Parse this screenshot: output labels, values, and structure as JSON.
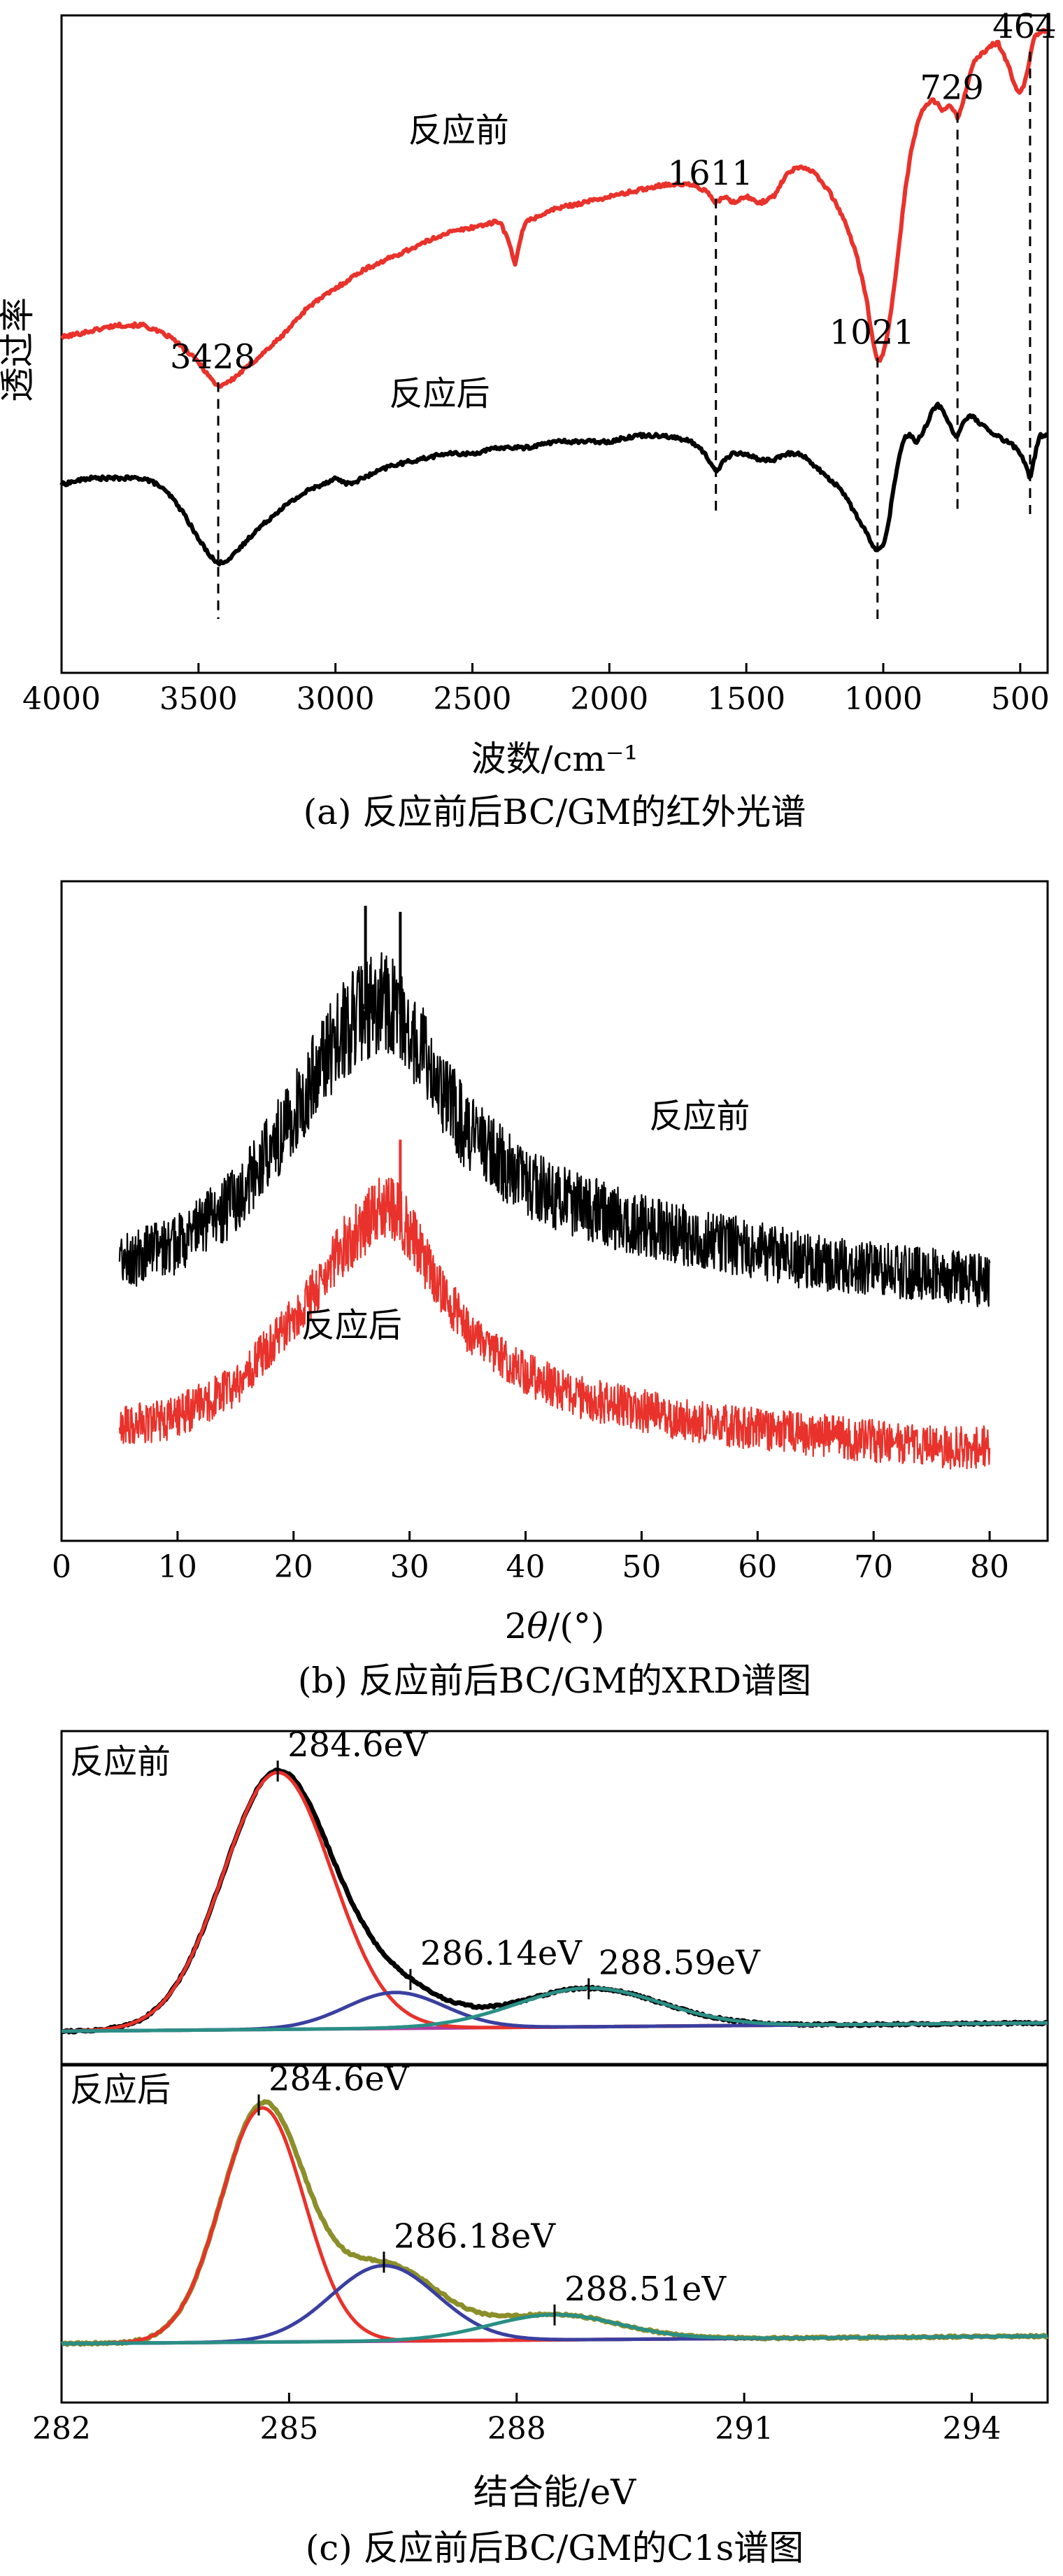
{
  "chart_data": [
    {
      "type": "line",
      "panel": "a",
      "caption": "(a) 反应前后BC/GM的红外光谱",
      "xlabel": "波数/cm⁻¹",
      "ylabel": "透过率",
      "xlim": [
        4000,
        400
      ],
      "xticks": [
        4000,
        3500,
        3000,
        2500,
        2000,
        1500,
        1000,
        500
      ],
      "grid": false,
      "peaks": [
        {
          "x": 3428,
          "label": "3428"
        },
        {
          "x": 1611,
          "label": "1611"
        },
        {
          "x": 1021,
          "label": "1021"
        },
        {
          "x": 729,
          "label": "729"
        },
        {
          "x": 464,
          "label": "464"
        }
      ],
      "series": [
        {
          "name": "反应前",
          "color": "#e8322b",
          "x": [
            4000,
            3900,
            3800,
            3700,
            3650,
            3600,
            3550,
            3500,
            3450,
            3428,
            3380,
            3300,
            3200,
            3100,
            3000,
            2900,
            2800,
            2700,
            2600,
            2500,
            2400,
            2370,
            2345,
            2320,
            2300,
            2200,
            2100,
            2000,
            1900,
            1800,
            1700,
            1650,
            1611,
            1580,
            1550,
            1500,
            1450,
            1400,
            1350,
            1300,
            1250,
            1200,
            1150,
            1100,
            1060,
            1040,
            1021,
            1000,
            980,
            960,
            940,
            920,
            900,
            880,
            860,
            840,
            820,
            800,
            780,
            760,
            740,
            729,
            710,
            690,
            670,
            650,
            620,
            600,
            580,
            560,
            540,
            520,
            500,
            480,
            464,
            450,
            430,
            400
          ],
          "y": [
            0.5,
            0.51,
            0.52,
            0.52,
            0.51,
            0.5,
            0.48,
            0.46,
            0.43,
            0.42,
            0.43,
            0.46,
            0.5,
            0.55,
            0.58,
            0.61,
            0.63,
            0.65,
            0.67,
            0.68,
            0.69,
            0.66,
            0.62,
            0.67,
            0.69,
            0.71,
            0.72,
            0.73,
            0.74,
            0.75,
            0.75,
            0.74,
            0.72,
            0.73,
            0.72,
            0.73,
            0.72,
            0.73,
            0.77,
            0.78,
            0.77,
            0.74,
            0.7,
            0.64,
            0.56,
            0.5,
            0.46,
            0.47,
            0.52,
            0.58,
            0.66,
            0.74,
            0.8,
            0.84,
            0.87,
            0.88,
            0.89,
            0.88,
            0.87,
            0.88,
            0.87,
            0.86,
            0.88,
            0.92,
            0.95,
            0.96,
            0.97,
            0.98,
            0.98,
            0.96,
            0.94,
            0.91,
            0.9,
            0.92,
            0.96,
            0.99,
            1.0,
            1.0
          ]
        },
        {
          "name": "反应后",
          "color": "#000000",
          "x": [
            4000,
            3900,
            3800,
            3700,
            3650,
            3600,
            3550,
            3500,
            3450,
            3428,
            3380,
            3300,
            3200,
            3100,
            3000,
            2950,
            2900,
            2800,
            2700,
            2600,
            2500,
            2400,
            2300,
            2200,
            2100,
            2000,
            1900,
            1800,
            1700,
            1650,
            1611,
            1580,
            1550,
            1500,
            1450,
            1400,
            1350,
            1300,
            1250,
            1200,
            1150,
            1100,
            1060,
            1040,
            1021,
            1000,
            980,
            960,
            940,
            920,
            900,
            880,
            860,
            840,
            820,
            800,
            780,
            760,
            740,
            729,
            710,
            690,
            670,
            650,
            620,
            600,
            580,
            560,
            540,
            520,
            500,
            480,
            464,
            450,
            430,
            400
          ],
          "y": [
            0.26,
            0.27,
            0.27,
            0.27,
            0.26,
            0.24,
            0.21,
            0.17,
            0.14,
            0.13,
            0.14,
            0.18,
            0.22,
            0.25,
            0.27,
            0.26,
            0.27,
            0.29,
            0.3,
            0.31,
            0.31,
            0.32,
            0.32,
            0.33,
            0.33,
            0.33,
            0.34,
            0.34,
            0.33,
            0.31,
            0.28,
            0.3,
            0.31,
            0.31,
            0.3,
            0.3,
            0.31,
            0.31,
            0.29,
            0.27,
            0.25,
            0.21,
            0.18,
            0.16,
            0.15,
            0.16,
            0.2,
            0.26,
            0.31,
            0.34,
            0.34,
            0.33,
            0.34,
            0.36,
            0.38,
            0.39,
            0.38,
            0.36,
            0.34,
            0.34,
            0.36,
            0.37,
            0.37,
            0.36,
            0.35,
            0.34,
            0.34,
            0.33,
            0.33,
            0.32,
            0.31,
            0.29,
            0.27,
            0.3,
            0.34,
            0.34
          ]
        }
      ],
      "annotations": [
        {
          "text": "反应前",
          "x": 2550,
          "y": 0.82
        },
        {
          "text": "反应后",
          "x": 2620,
          "y": 0.39
        }
      ]
    },
    {
      "type": "line",
      "panel": "b",
      "caption": "(b) 反应前后BC/GM的XRD谱图",
      "xlabel": "2θ/(°)",
      "xlim": [
        0,
        85
      ],
      "xticks": [
        0,
        10,
        20,
        30,
        40,
        50,
        60,
        70,
        80
      ],
      "grid": false,
      "series": [
        {
          "name": "反应前",
          "color": "#000000",
          "x": [
            5,
            10,
            15,
            20,
            22,
            24,
            26,
            27,
            28,
            29,
            30,
            32,
            35,
            40,
            45,
            50,
            55,
            60,
            65,
            70,
            75,
            80
          ],
          "y": [
            0.42,
            0.45,
            0.52,
            0.66,
            0.73,
            0.79,
            0.83,
            0.84,
            0.84,
            0.83,
            0.8,
            0.73,
            0.63,
            0.55,
            0.51,
            0.48,
            0.46,
            0.44,
            0.42,
            0.41,
            0.4,
            0.39
          ],
          "sharp_peaks": [
            {
              "x": 26.2,
              "y": 1.0
            },
            {
              "x": 29.2,
              "y": 0.99
            }
          ]
        },
        {
          "name": "反应后",
          "color": "#e8322b",
          "x": [
            5,
            10,
            15,
            20,
            22,
            24,
            26,
            27,
            28,
            29,
            30,
            32,
            35,
            40,
            45,
            50,
            55,
            60,
            65,
            70,
            75,
            80
          ],
          "y": [
            0.15,
            0.17,
            0.22,
            0.33,
            0.38,
            0.44,
            0.48,
            0.5,
            0.51,
            0.5,
            0.47,
            0.4,
            0.31,
            0.24,
            0.2,
            0.18,
            0.16,
            0.15,
            0.14,
            0.13,
            0.12,
            0.12
          ],
          "sharp_peaks": [
            {
              "x": 29.2,
              "y": 0.62
            }
          ]
        }
      ],
      "annotations": [
        {
          "text": "反应前",
          "x": 55,
          "y": 0.64
        },
        {
          "text": "反应后",
          "x": 25,
          "y": 0.3
        }
      ]
    },
    {
      "type": "line",
      "panel": "c",
      "caption": "(c) 反应前后BC/GM的C1s谱图",
      "xlabel": "结合能/eV",
      "xlim": [
        282,
        295
      ],
      "xticks": [
        282,
        285,
        288,
        291,
        294
      ],
      "grid": false,
      "subplots": [
        {
          "name": "反应前",
          "baseline": [
            [
              282,
              0.02
            ],
            [
              295,
              0.05
            ]
          ],
          "components": [
            {
              "center": 284.85,
              "height": 0.93,
              "sigma": 0.72,
              "color": "#e8322b"
            },
            {
              "center": 286.4,
              "height": 0.13,
              "sigma": 0.65,
              "color": "#3a3fa0"
            },
            {
              "center": 288.95,
              "height": 0.14,
              "sigma": 0.95,
              "color": "#2a8f85"
            }
          ],
          "envelope_color": "#000000",
          "baseline_color": "#b03aa0",
          "peak_labels": [
            {
              "x": 284.85,
              "text": "284.6eV"
            },
            {
              "x": 286.6,
              "text": "286.14eV"
            },
            {
              "x": 288.95,
              "text": "288.59eV"
            }
          ]
        },
        {
          "name": "反应后",
          "baseline": [
            [
              282,
              0.02
            ],
            [
              295,
              0.05
            ]
          ],
          "components": [
            {
              "center": 284.65,
              "height": 0.93,
              "sigma": 0.55,
              "color": "#e8322b"
            },
            {
              "center": 286.25,
              "height": 0.3,
              "sigma": 0.7,
              "color": "#3a3fa0"
            },
            {
              "center": 288.5,
              "height": 0.1,
              "sigma": 0.85,
              "color": "#2a8f85"
            }
          ],
          "envelope_color": "#8a8f2a",
          "baseline_color": "#b03aa0",
          "peak_labels": [
            {
              "x": 284.6,
              "text": "284.6eV"
            },
            {
              "x": 286.25,
              "text": "286.18eV"
            },
            {
              "x": 288.5,
              "text": "288.51eV"
            }
          ]
        }
      ]
    }
  ]
}
